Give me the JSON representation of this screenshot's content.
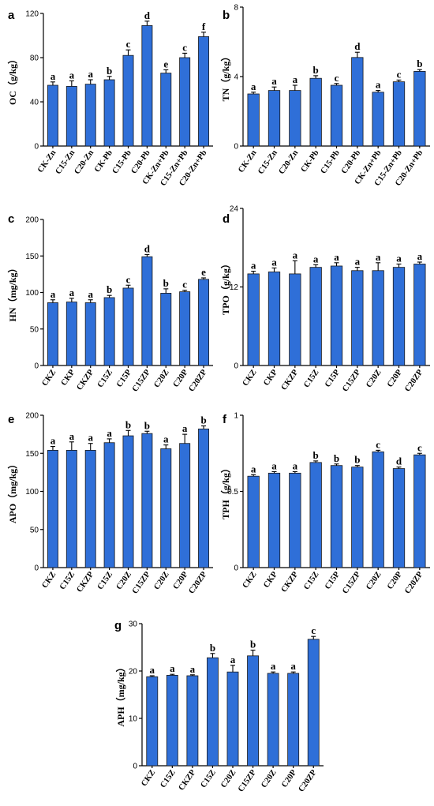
{
  "chart_data": [
    {
      "type": "bar",
      "panel": "a",
      "ylabel": "OC（g/kg）",
      "ylim": [
        0,
        120
      ],
      "yticks": [
        0,
        40,
        80,
        120
      ],
      "categories": [
        "CK-Zn",
        "C15-Zn",
        "C20-Zn",
        "CK-Pb",
        "C15-Pb",
        "C20-Pb",
        "CK-Zn+Pb",
        "C15-Zn+Pb",
        "C20-Zn+Pb"
      ],
      "values": [
        55,
        54,
        56,
        60,
        82,
        109,
        66,
        80,
        99
      ],
      "errors": [
        3,
        5,
        4,
        3,
        5,
        4,
        3,
        4,
        4
      ],
      "letters": [
        "a",
        "a",
        "a",
        "b",
        "c",
        "d",
        "e",
        "c",
        "f"
      ]
    },
    {
      "type": "bar",
      "panel": "b",
      "ylabel": "TN（g/kg）",
      "ylim": [
        0,
        8
      ],
      "yticks": [
        0,
        4,
        8
      ],
      "categories": [
        "CK-Zn",
        "C15-Zn",
        "C20-Zn",
        "CK-Pb",
        "C15-Pb",
        "C20-Pb",
        "CK-Zn+Pb",
        "C15-Zn+Pb",
        "C20-Zn+Pb"
      ],
      "values": [
        3.0,
        3.2,
        3.2,
        3.9,
        3.5,
        5.1,
        3.1,
        3.7,
        4.3
      ],
      "errors": [
        0.1,
        0.2,
        0.3,
        0.15,
        0.1,
        0.3,
        0.1,
        0.1,
        0.1
      ],
      "letters": [
        "a",
        "a",
        "a",
        "b",
        "c",
        "d",
        "a",
        "c",
        "b"
      ]
    },
    {
      "type": "bar",
      "panel": "c",
      "ylabel": "HN（mg/kg）",
      "ylim": [
        0,
        200
      ],
      "yticks": [
        0,
        50,
        100,
        150,
        200
      ],
      "categories": [
        "CKZ",
        "CKP",
        "CKZP",
        "C15Z",
        "C15P",
        "C15ZP",
        "C20Z",
        "C20P",
        "C20ZP"
      ],
      "values": [
        86,
        87,
        86,
        93,
        106,
        149,
        99,
        101,
        118
      ],
      "errors": [
        4,
        5,
        4,
        3,
        4,
        3,
        6,
        2,
        2
      ],
      "letters": [
        "a",
        "a",
        "a",
        "b",
        "c",
        "d",
        "b",
        "c",
        "e"
      ]
    },
    {
      "type": "bar",
      "panel": "d",
      "ylabel": "TPO（g/kg）",
      "ylim": [
        0,
        24
      ],
      "yticks": [
        0,
        12,
        24
      ],
      "categories": [
        "CKZ",
        "CKP",
        "CKZP",
        "C15Z",
        "C15P",
        "C15ZP",
        "C20Z",
        "C20P",
        "C20ZP"
      ],
      "values": [
        14.0,
        14.3,
        14.0,
        15.0,
        15.2,
        14.5,
        14.5,
        15.0,
        15.5
      ],
      "errors": [
        0.4,
        0.6,
        2.0,
        0.4,
        0.5,
        0.5,
        1.2,
        0.5,
        0.3
      ],
      "letters": [
        "a",
        "a",
        "a",
        "a",
        "a",
        "a",
        "a",
        "a",
        "a"
      ]
    },
    {
      "type": "bar",
      "panel": "e",
      "ylabel": "APO（mg/kg）",
      "ylim": [
        0,
        200
      ],
      "yticks": [
        0,
        50,
        100,
        150,
        200
      ],
      "categories": [
        "CKZ",
        "C15Z",
        "CKZP",
        "C15Z",
        "C20Z",
        "C15ZP",
        "C20Z",
        "C20P",
        "C20ZP"
      ],
      "values": [
        154,
        154,
        154,
        164,
        173,
        176,
        156,
        163,
        182
      ],
      "errors": [
        5,
        11,
        9,
        5,
        7,
        3,
        5,
        12,
        4
      ],
      "letters": [
        "a",
        "a",
        "a",
        "a",
        "b",
        "b",
        "a",
        "a",
        "b"
      ]
    },
    {
      "type": "bar",
      "panel": "f",
      "ylabel": "TPH（g/kg）",
      "ylim": [
        0,
        1
      ],
      "yticks": [
        0,
        0.5,
        1
      ],
      "categories": [
        "CKZ",
        "CKP",
        "CKZP",
        "C15Z",
        "C15P",
        "C15ZP",
        "C20Z",
        "C20P",
        "C20ZP"
      ],
      "values": [
        0.6,
        0.62,
        0.62,
        0.69,
        0.67,
        0.66,
        0.76,
        0.65,
        0.74
      ],
      "errors": [
        0.01,
        0.01,
        0.01,
        0.01,
        0.01,
        0.01,
        0.01,
        0.01,
        0.01
      ],
      "letters": [
        "a",
        "a",
        "a",
        "b",
        "b",
        "b",
        "c",
        "d",
        "c"
      ]
    },
    {
      "type": "bar",
      "panel": "g",
      "ylabel": "APH（mg/kg）",
      "ylim": [
        0,
        30
      ],
      "yticks": [
        0,
        10,
        20,
        30
      ],
      "categories": [
        "CKZ",
        "C15Z",
        "CKZP",
        "C15Z",
        "C20Z",
        "C15ZP",
        "C20Z",
        "C20P",
        "C20ZP"
      ],
      "values": [
        18.8,
        19.1,
        19.0,
        22.8,
        19.8,
        23.2,
        19.5,
        19.5,
        26.7
      ],
      "errors": [
        0.2,
        0.2,
        0.2,
        0.9,
        1.4,
        1.2,
        0.3,
        0.3,
        0.6
      ],
      "letters": [
        "a",
        "a",
        "a",
        "b",
        "a",
        "b",
        "a",
        "a",
        "c"
      ]
    }
  ]
}
